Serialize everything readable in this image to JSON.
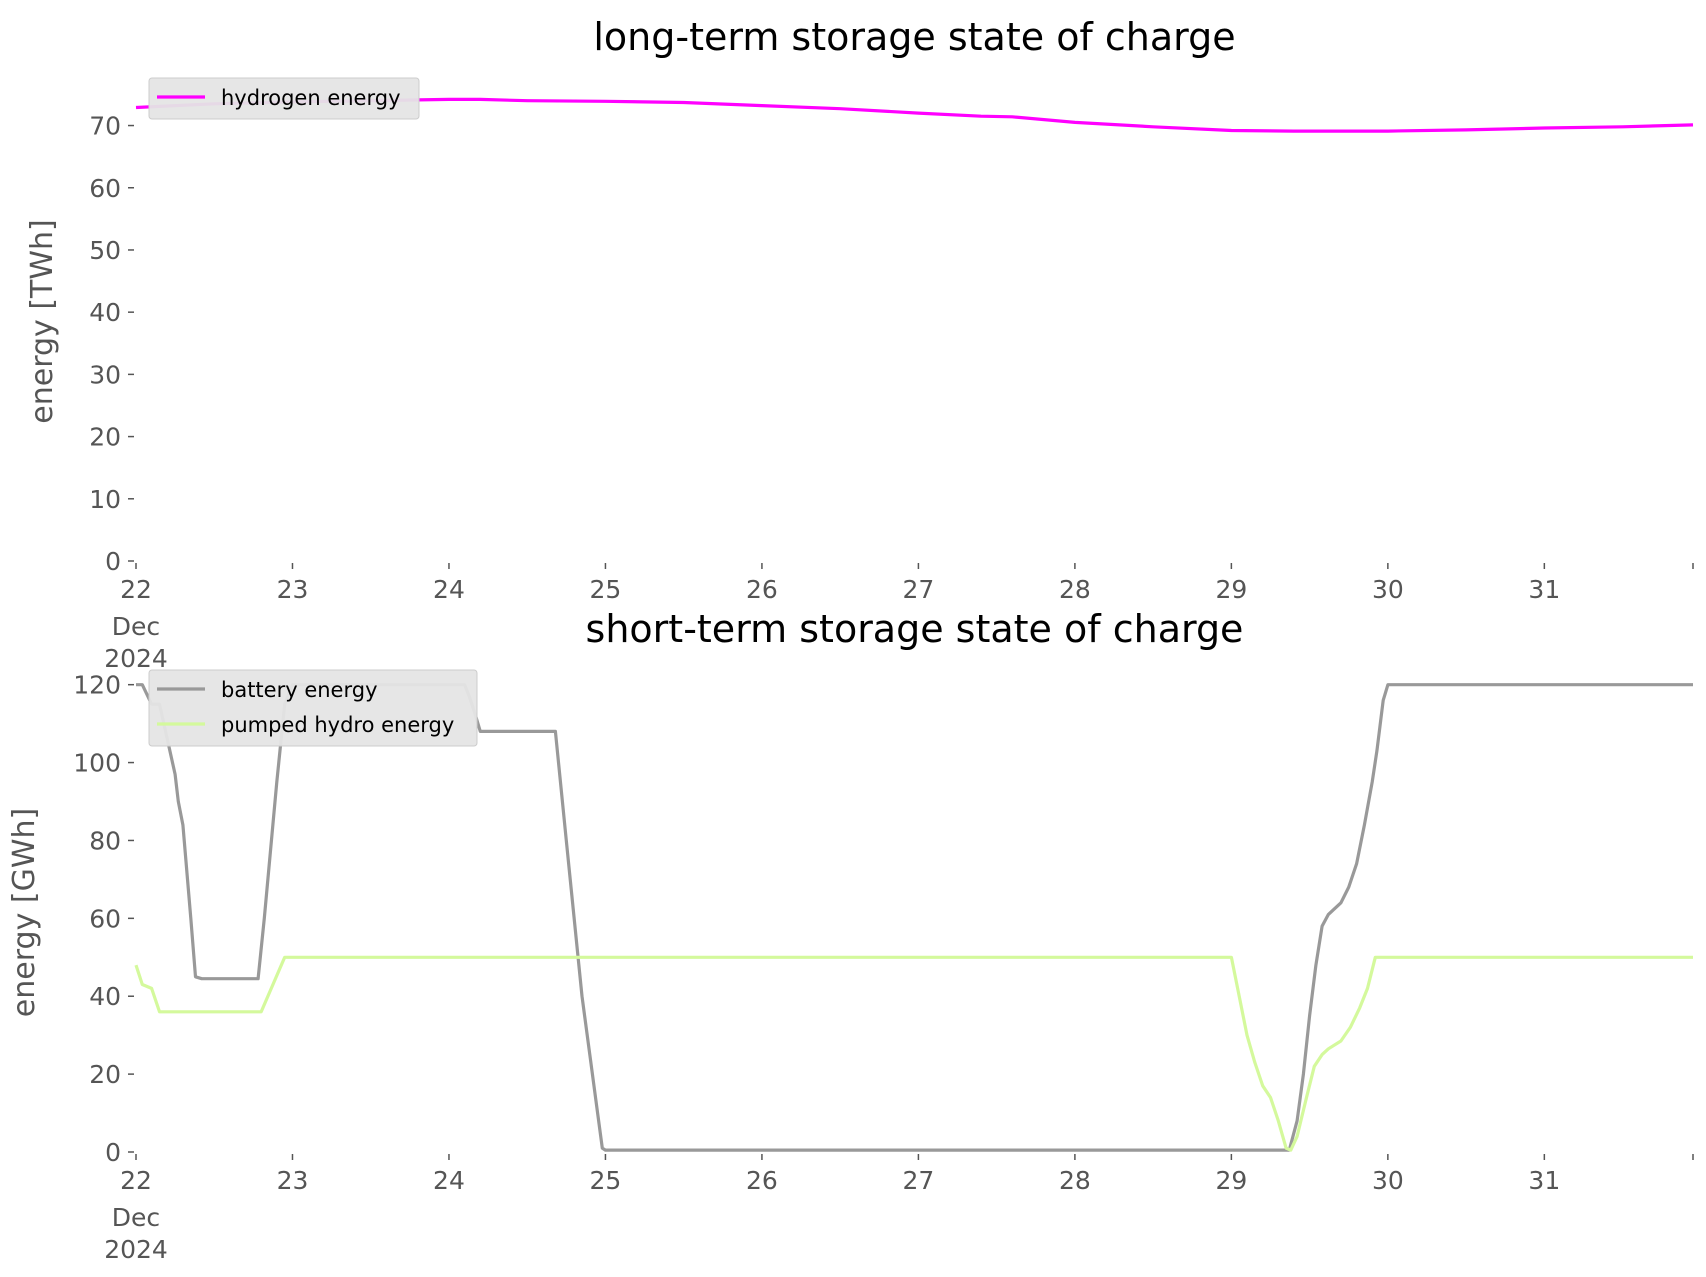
{
  "chart_data": [
    {
      "type": "line",
      "title": "long-term storage state of charge",
      "ylabel": "energy [TWh]",
      "xlabel": "",
      "ylim": [
        0,
        77
      ],
      "xlim": [
        0,
        9.95
      ],
      "yticks": [
        0,
        10,
        20,
        30,
        40,
        50,
        60,
        70
      ],
      "xticks": [
        {
          "x": 0,
          "label": "22",
          "sub": [
            "Dec",
            "2024"
          ]
        },
        {
          "x": 1,
          "label": "23"
        },
        {
          "x": 2,
          "label": "24"
        },
        {
          "x": 3,
          "label": "25"
        },
        {
          "x": 4,
          "label": "26"
        },
        {
          "x": 5,
          "label": "27"
        },
        {
          "x": 6,
          "label": "28"
        },
        {
          "x": 7,
          "label": "29"
        },
        {
          "x": 8,
          "label": "30"
        },
        {
          "x": 9,
          "label": "31"
        },
        {
          "x": 9.95,
          "label": ""
        }
      ],
      "grid": false,
      "legend_position": "top-left",
      "series": [
        {
          "name": "hydrogen energy",
          "color": "#ff00ff",
          "points": [
            [
              0,
              72.9
            ],
            [
              0.5,
              73.5
            ],
            [
              1,
              73.8
            ],
            [
              1.5,
              74.0
            ],
            [
              2,
              74.2
            ],
            [
              2.2,
              74.2
            ],
            [
              2.5,
              74.0
            ],
            [
              3,
              73.9
            ],
            [
              3.5,
              73.7
            ],
            [
              4,
              73.2
            ],
            [
              4.5,
              72.7
            ],
            [
              5,
              72.0
            ],
            [
              5.4,
              71.5
            ],
            [
              5.6,
              71.4
            ],
            [
              6,
              70.5
            ],
            [
              6.5,
              69.8
            ],
            [
              7,
              69.2
            ],
            [
              7.4,
              69.1
            ],
            [
              8,
              69.1
            ],
            [
              8.5,
              69.3
            ],
            [
              9,
              69.6
            ],
            [
              9.5,
              69.8
            ],
            [
              9.95,
              70.1
            ]
          ]
        }
      ]
    },
    {
      "type": "line",
      "title": "short-term storage state of charge",
      "ylabel": "energy [GWh]",
      "xlabel": "",
      "ylim": [
        0,
        123
      ],
      "xlim": [
        0,
        9.95
      ],
      "yticks": [
        0,
        20,
        40,
        60,
        80,
        100,
        120
      ],
      "xticks": [
        {
          "x": 0,
          "label": "22",
          "sub": [
            "Dec",
            "2024"
          ]
        },
        {
          "x": 1,
          "label": "23"
        },
        {
          "x": 2,
          "label": "24"
        },
        {
          "x": 3,
          "label": "25"
        },
        {
          "x": 4,
          "label": "26"
        },
        {
          "x": 5,
          "label": "27"
        },
        {
          "x": 6,
          "label": "28"
        },
        {
          "x": 7,
          "label": "29"
        },
        {
          "x": 8,
          "label": "30"
        },
        {
          "x": 9,
          "label": "31"
        },
        {
          "x": 9.95,
          "label": ""
        }
      ],
      "grid": false,
      "legend_position": "top-left",
      "series": [
        {
          "name": "battery energy",
          "color": "#999999",
          "points": [
            [
              0,
              120
            ],
            [
              0.04,
              120
            ],
            [
              0.1,
              115
            ],
            [
              0.15,
              115
            ],
            [
              0.2,
              106
            ],
            [
              0.25,
              97
            ],
            [
              0.27,
              90
            ],
            [
              0.3,
              84
            ],
            [
              0.35,
              60
            ],
            [
              0.38,
              45
            ],
            [
              0.42,
              44.5
            ],
            [
              0.6,
              44.5
            ],
            [
              0.78,
              44.5
            ],
            [
              0.82,
              60
            ],
            [
              0.9,
              95
            ],
            [
              0.95,
              115
            ],
            [
              1.0,
              120
            ],
            [
              2.0,
              120
            ],
            [
              2.1,
              120
            ],
            [
              2.13,
              117
            ],
            [
              2.17,
              112
            ],
            [
              2.2,
              108
            ],
            [
              2.6,
              108
            ],
            [
              2.68,
              108
            ],
            [
              2.75,
              80
            ],
            [
              2.85,
              40
            ],
            [
              2.9,
              25
            ],
            [
              2.95,
              10
            ],
            [
              2.98,
              1
            ],
            [
              3.0,
              0.5
            ],
            [
              7.0,
              0.5
            ],
            [
              7.3,
              0.5
            ],
            [
              7.37,
              0.5
            ],
            [
              7.42,
              8
            ],
            [
              7.46,
              20
            ],
            [
              7.5,
              35
            ],
            [
              7.54,
              48
            ],
            [
              7.58,
              58
            ],
            [
              7.62,
              61
            ],
            [
              7.7,
              64
            ],
            [
              7.75,
              68
            ],
            [
              7.8,
              74
            ],
            [
              7.85,
              84
            ],
            [
              7.9,
              95
            ],
            [
              7.93,
              103
            ],
            [
              7.97,
              116
            ],
            [
              8.0,
              120
            ],
            [
              9.95,
              120
            ]
          ]
        },
        {
          "name": "pumped hydro energy",
          "color": "#d4f99c",
          "points": [
            [
              0,
              48
            ],
            [
              0.04,
              43
            ],
            [
              0.1,
              42
            ],
            [
              0.15,
              36
            ],
            [
              0.3,
              36
            ],
            [
              0.6,
              36
            ],
            [
              0.8,
              36
            ],
            [
              0.95,
              50
            ],
            [
              7.0,
              50
            ],
            [
              7.05,
              40
            ],
            [
              7.1,
              30
            ],
            [
              7.15,
              23
            ],
            [
              7.2,
              17
            ],
            [
              7.25,
              14
            ],
            [
              7.3,
              8
            ],
            [
              7.35,
              1
            ],
            [
              7.38,
              0.5
            ],
            [
              7.42,
              4
            ],
            [
              7.48,
              14
            ],
            [
              7.53,
              22
            ],
            [
              7.58,
              25
            ],
            [
              7.62,
              26.5
            ],
            [
              7.7,
              28.5
            ],
            [
              7.76,
              32
            ],
            [
              7.82,
              37
            ],
            [
              7.87,
              42
            ],
            [
              7.92,
              50
            ],
            [
              8.0,
              50
            ],
            [
              9.95,
              50
            ]
          ]
        }
      ]
    }
  ]
}
